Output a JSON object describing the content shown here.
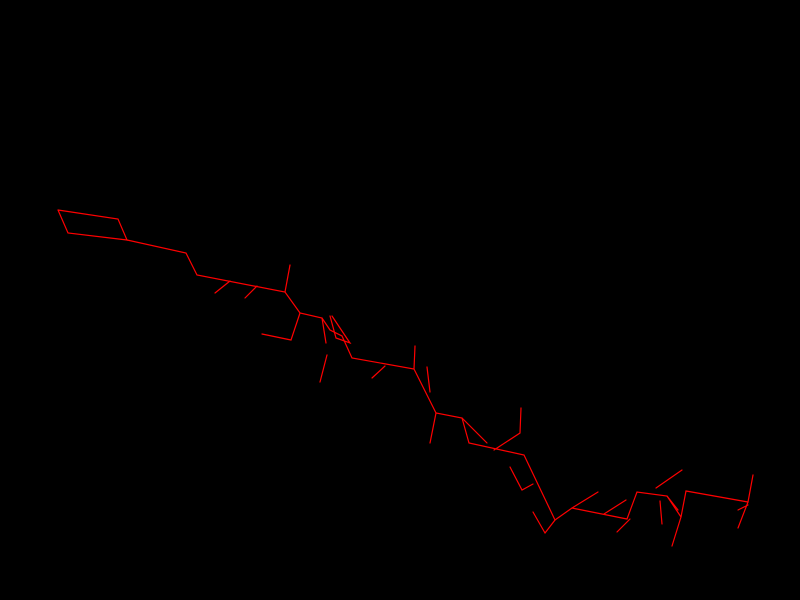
{
  "canvas": {
    "background": "#000000",
    "stroke_color": "#ff0000"
  },
  "figure": {
    "description_visible_text": ""
  }
}
